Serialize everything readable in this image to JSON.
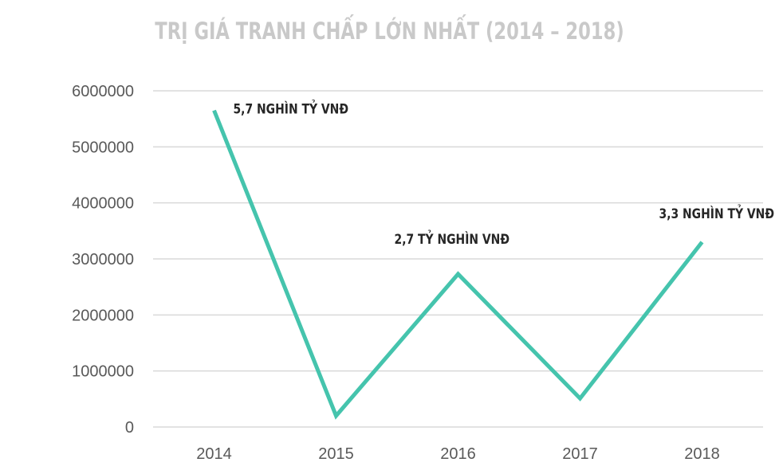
{
  "chart_data": {
    "type": "line",
    "title": "TRỊ GIÁ TRANH CHẤP LỚN NHẤT (2014 – 2018)",
    "categories": [
      "2014",
      "2015",
      "2016",
      "2017",
      "2018"
    ],
    "series": [
      {
        "values": [
          5650000,
          200000,
          2730000,
          510000,
          3300000
        ]
      }
    ],
    "ylim": [
      0,
      6000000
    ],
    "yticks": [
      0,
      1000000,
      2000000,
      3000000,
      4000000,
      5000000,
      6000000
    ],
    "yticklabels": [
      "0",
      "1000000",
      "2000000",
      "3000000",
      "4000000",
      "5000000",
      "6000000"
    ],
    "data_labels": [
      {
        "index": 0,
        "text": "5,7 NGHÌN TỶ VNĐ"
      },
      {
        "index": 2,
        "text": "2,7 TỶ NGHÌN VNĐ"
      },
      {
        "index": 4,
        "text": "3,3 NGHÌN TỶ VNĐ"
      }
    ],
    "grid": true,
    "colors": {
      "line": "#45c4ad",
      "grid": "#d9d9d9",
      "title": "#c9c9c9"
    }
  }
}
